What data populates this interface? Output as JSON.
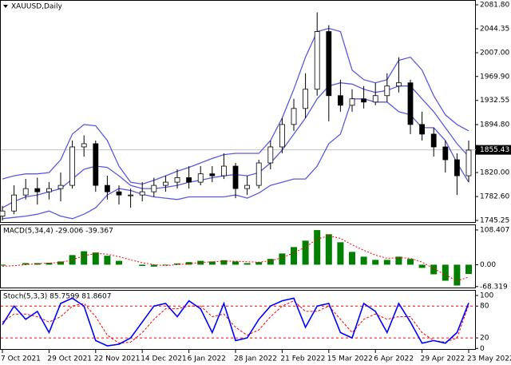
{
  "chart_data": [
    {
      "type": "candlestick",
      "title": "XAUUSD,Daily",
      "categories": [
        "7 Oct 2021",
        null,
        null,
        null,
        "29 Oct 2021",
        null,
        null,
        null,
        "22 Nov 2021",
        null,
        null,
        null,
        "14 Dec 2021",
        null,
        null,
        null,
        "6 Jan 2022",
        null,
        null,
        null,
        "28 Jan 2022",
        null,
        null,
        null,
        "21 Feb 2022",
        null,
        null,
        null,
        "15 Mar 2022",
        null,
        null,
        null,
        "6 Apr 2022",
        null,
        null,
        null,
        "29 Apr 2022",
        null,
        null,
        null,
        "23 May 2022"
      ],
      "open": [
        1752,
        1760,
        1785,
        1795,
        1790,
        1795,
        1800,
        1860,
        1865,
        1800,
        1790,
        1785,
        1785,
        1790,
        1800,
        1805,
        1812,
        1805,
        1818,
        1815,
        1830,
        1795,
        1800,
        1835,
        1860,
        1895,
        1920,
        1950,
        2040,
        1940,
        1925,
        1935,
        1930,
        1940,
        1955,
        1960,
        1895,
        1880,
        1860,
        1840,
        1815
      ],
      "high": [
        1768,
        1800,
        1810,
        1812,
        1805,
        1820,
        1870,
        1878,
        1870,
        1815,
        1800,
        1795,
        1805,
        1812,
        1815,
        1825,
        1830,
        1830,
        1830,
        1850,
        1835,
        1815,
        1840,
        1870,
        1905,
        1935,
        1975,
        2070,
        2050,
        1965,
        1950,
        1955,
        1960,
        1975,
        2000,
        1965,
        1915,
        1890,
        1870,
        1850,
        1870
      ],
      "low": [
        1745,
        1755,
        1778,
        1770,
        1778,
        1775,
        1795,
        1845,
        1790,
        1778,
        1770,
        1765,
        1775,
        1782,
        1790,
        1795,
        1795,
        1800,
        1805,
        1810,
        1780,
        1785,
        1795,
        1825,
        1850,
        1885,
        1905,
        1940,
        1900,
        1915,
        1915,
        1920,
        1925,
        1930,
        1945,
        1880,
        1870,
        1845,
        1820,
        1785,
        1805
      ],
      "close": [
        1760,
        1785,
        1795,
        1790,
        1795,
        1800,
        1860,
        1865,
        1800,
        1790,
        1785,
        1785,
        1790,
        1800,
        1805,
        1812,
        1805,
        1818,
        1815,
        1830,
        1795,
        1800,
        1835,
        1860,
        1895,
        1920,
        1950,
        2040,
        1940,
        1925,
        1935,
        1930,
        1940,
        1955,
        1960,
        1895,
        1880,
        1860,
        1840,
        1815,
        1855
      ],
      "bands_color": "#5a5ae0",
      "upper": [
        1810,
        1815,
        1818,
        1818,
        1820,
        1840,
        1880,
        1895,
        1893,
        1870,
        1830,
        1805,
        1802,
        1808,
        1815,
        1822,
        1828,
        1835,
        1842,
        1848,
        1850,
        1850,
        1850,
        1870,
        1905,
        1950,
        2000,
        2040,
        2045,
        2040,
        1980,
        1965,
        1960,
        1965,
        1995,
        2000,
        1980,
        1940,
        1910,
        1895,
        1885
      ],
      "middle": [
        1765,
        1775,
        1782,
        1785,
        1790,
        1795,
        1810,
        1825,
        1830,
        1828,
        1815,
        1800,
        1795,
        1795,
        1797,
        1800,
        1805,
        1808,
        1812,
        1815,
        1817,
        1815,
        1820,
        1835,
        1855,
        1880,
        1905,
        1935,
        1955,
        1960,
        1958,
        1950,
        1945,
        1948,
        1955,
        1955,
        1935,
        1915,
        1890,
        1865,
        1845
      ],
      "lower": [
        1748,
        1750,
        1752,
        1755,
        1760,
        1752,
        1748,
        1755,
        1765,
        1785,
        1795,
        1792,
        1786,
        1782,
        1780,
        1778,
        1782,
        1782,
        1782,
        1782,
        1785,
        1780,
        1788,
        1800,
        1805,
        1810,
        1810,
        1830,
        1865,
        1880,
        1935,
        1935,
        1930,
        1930,
        1915,
        1910,
        1890,
        1890,
        1870,
        1835,
        1805
      ],
      "last_price": 1855.43,
      "ylim": [
        1742.8,
        2088.0
      ],
      "yticks": [
        {
          "value": 2081.8,
          "label": "2081.80"
        },
        2044.35,
        {
          "value": 2007,
          "label": "2007.00"
        },
        {
          "value": 1969.9,
          "label": "1969.90"
        },
        1932.55,
        {
          "value": 1894.8,
          "label": "1894.80"
        },
        {
          "value": 1820,
          "label": "1820.00"
        },
        {
          "value": 1782.6,
          "label": "1782.60"
        },
        1745.25
      ]
    },
    {
      "type": "macd",
      "title": "MACD(5,34,4) -29.006 -39.367",
      "series": [
        {
          "color": "#008000",
          "values": [
            -3,
            0,
            5,
            5,
            6,
            10,
            30,
            42,
            38,
            28,
            12,
            0,
            -4,
            -6,
            -2,
            4,
            8,
            12,
            10,
            14,
            10,
            5,
            8,
            18,
            35,
            55,
            75,
            108,
            95,
            70,
            40,
            25,
            15,
            15,
            25,
            18,
            -10,
            -30,
            -50,
            -65,
            -29
          ]
        },
        {
          "color": "#ff0000",
          "values": [
            -5,
            -3,
            0,
            3,
            5,
            7,
            15,
            28,
            35,
            33,
            25,
            15,
            6,
            0,
            -3,
            0,
            3,
            7,
            9,
            11,
            11,
            9,
            8,
            12,
            22,
            37,
            55,
            80,
            90,
            82,
            62,
            45,
            30,
            20,
            22,
            20,
            8,
            -12,
            -32,
            -50,
            -39
          ]
        }
      ],
      "ylim": [
        -71.3,
        123.2
      ],
      "yticks": [
        108.407,
        {
          "value": 0,
          "label": "0.00"
        },
        -68.319
      ]
    },
    {
      "type": "stochastic",
      "title": "Stoch(5,3,3) 85.7599 81.8607",
      "series": [
        {
          "color": "#0000ff",
          "values": [
            45,
            80,
            55,
            70,
            30,
            85,
            95,
            80,
            15,
            5,
            8,
            20,
            50,
            80,
            85,
            60,
            90,
            75,
            30,
            85,
            15,
            20,
            55,
            80,
            90,
            95,
            40,
            80,
            85,
            30,
            20,
            85,
            70,
            30,
            85,
            50,
            10,
            15,
            10,
            30,
            86
          ]
        },
        {
          "color": "#ff0000",
          "values": [
            50,
            65,
            65,
            60,
            50,
            60,
            80,
            85,
            60,
            25,
            10,
            12,
            30,
            55,
            75,
            75,
            80,
            80,
            60,
            65,
            40,
            25,
            35,
            60,
            80,
            90,
            70,
            70,
            80,
            55,
            30,
            55,
            65,
            55,
            60,
            60,
            30,
            15,
            12,
            20,
            82
          ]
        }
      ],
      "level_lines": [
        80,
        20
      ],
      "ylim": [
        -1,
        109
      ],
      "yticks": [
        100,
        80,
        20,
        0
      ]
    }
  ]
}
